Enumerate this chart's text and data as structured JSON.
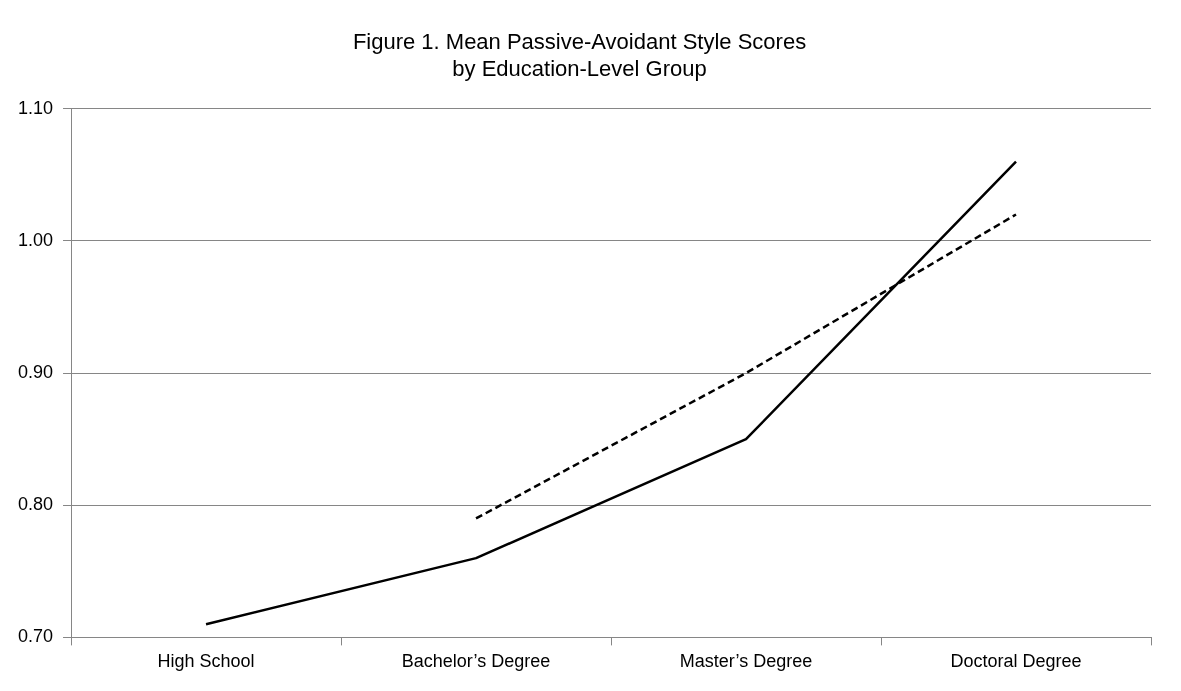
{
  "chart_data": {
    "type": "line",
    "title": "Figure 1. Mean Passive-Avoidant Style Scores\nby Education-Level Group",
    "categories": [
      "High School",
      "Bachelor’s Degree",
      "Master’s Degree",
      "Doctoral Degree"
    ],
    "series": [
      {
        "color": "#000000",
        "line_style": "solid",
        "values": [
          0.71,
          0.76,
          0.85,
          1.06
        ]
      },
      {
        "color": "#000000",
        "line_style": "dashed",
        "values": [
          null,
          0.79,
          0.9,
          1.02
        ]
      }
    ],
    "ylim": [
      0.7,
      1.1
    ],
    "yticks": [
      {
        "value": 0.7,
        "label": "0.70"
      },
      {
        "value": 0.8,
        "label": "0.80"
      },
      {
        "value": 0.9,
        "label": "0.90"
      },
      {
        "value": 1.0,
        "label": "1.00"
      },
      {
        "value": 1.1,
        "label": "1.10"
      }
    ],
    "grid": "y",
    "marker": "none"
  }
}
